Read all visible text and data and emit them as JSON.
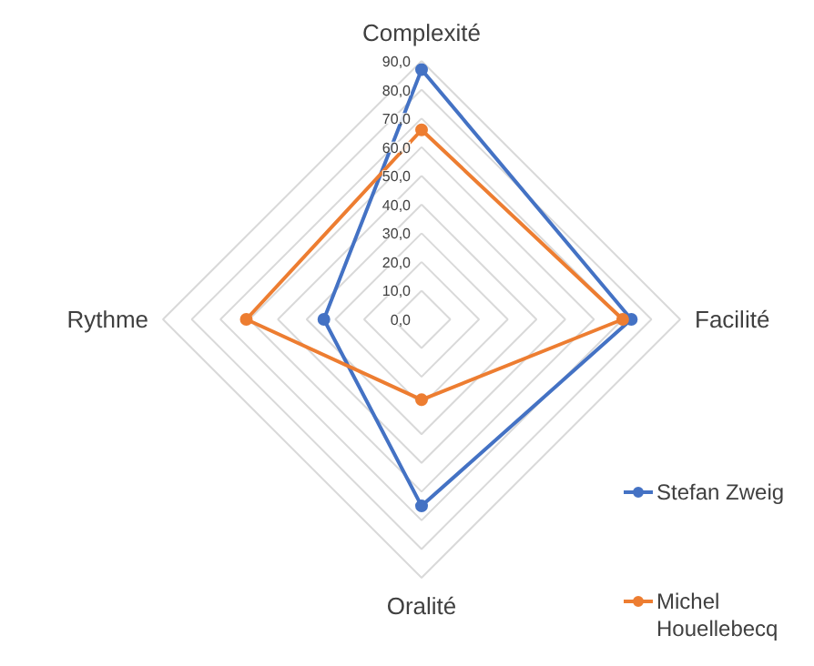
{
  "chart_data": {
    "type": "radar",
    "categories": [
      "Complexité",
      "Facilité",
      "Oralité",
      "Rythme"
    ],
    "series": [
      {
        "name": "Stefan Zweig",
        "color": "#4472c4",
        "values": [
          87,
          73,
          65,
          34
        ]
      },
      {
        "name": "Michel Houellebecq",
        "color": "#ed7d31",
        "values": [
          66,
          70,
          28,
          61
        ]
      }
    ],
    "ylim": [
      0,
      90
    ],
    "yticks": [
      {
        "value": 0,
        "label": "0,0"
      },
      {
        "value": 10,
        "label": "10,0"
      },
      {
        "value": 20,
        "label": "20,0"
      },
      {
        "value": 30,
        "label": "30,0"
      },
      {
        "value": 40,
        "label": "40,0"
      },
      {
        "value": 50,
        "label": "50,0"
      },
      {
        "value": 60,
        "label": "60,0"
      },
      {
        "value": 70,
        "label": "70,0"
      },
      {
        "value": 80,
        "label": "80,0"
      },
      {
        "value": 90,
        "label": "90,0"
      }
    ],
    "grid": true,
    "legend": "right",
    "marker": "circle",
    "line_style": "solid"
  }
}
